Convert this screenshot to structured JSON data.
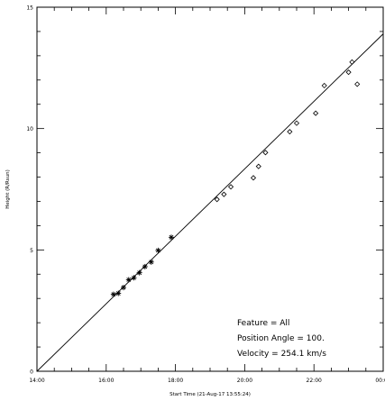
{
  "chart_data": {
    "type": "scatter",
    "title": "",
    "xlabel": "Start Time (21-Aug-17 13:55:24)",
    "ylabel": "Height (R/Rsun)",
    "xlim": [
      14.0,
      24.0
    ],
    "ylim": [
      0,
      15
    ],
    "x_ticks": [
      {
        "value": 14,
        "label": "14:00"
      },
      {
        "value": 16,
        "label": "16:00"
      },
      {
        "value": 18,
        "label": "18:00"
      },
      {
        "value": 20,
        "label": "20:00"
      },
      {
        "value": 22,
        "label": "22:00"
      },
      {
        "value": 24,
        "label": "00:00"
      }
    ],
    "y_ticks": [
      {
        "value": 0,
        "label": "0"
      },
      {
        "value": 5,
        "label": "5"
      },
      {
        "value": 10,
        "label": "10"
      },
      {
        "value": 15,
        "label": "15"
      }
    ],
    "grid": false,
    "series": [
      {
        "marker": "asterisk",
        "points": [
          [
            16.21,
            3.17
          ],
          [
            16.35,
            3.21
          ],
          [
            16.5,
            3.45
          ],
          [
            16.65,
            3.77
          ],
          [
            16.8,
            3.85
          ],
          [
            16.96,
            4.06
          ],
          [
            17.12,
            4.31
          ],
          [
            17.3,
            4.5
          ],
          [
            17.5,
            4.98
          ],
          [
            17.88,
            5.52
          ]
        ]
      },
      {
        "marker": "diamond",
        "points": [
          [
            19.2,
            7.08
          ],
          [
            19.4,
            7.29
          ],
          [
            19.6,
            7.6
          ],
          [
            20.25,
            7.97
          ],
          [
            20.4,
            8.44
          ],
          [
            20.6,
            9.01
          ],
          [
            21.3,
            9.87
          ],
          [
            21.5,
            10.22
          ],
          [
            22.05,
            10.63
          ],
          [
            22.3,
            11.77
          ],
          [
            23.0,
            12.32
          ],
          [
            23.1,
            12.74
          ],
          [
            23.25,
            11.83
          ]
        ]
      }
    ],
    "fit_line": {
      "from": [
        14.0,
        0.0
      ],
      "to": [
        24.0,
        13.9
      ]
    },
    "annotation": {
      "feature": "Feature = All",
      "position_angle": "Position Angle =  100.",
      "velocity": "Velocity =   254.1 km/s"
    }
  }
}
